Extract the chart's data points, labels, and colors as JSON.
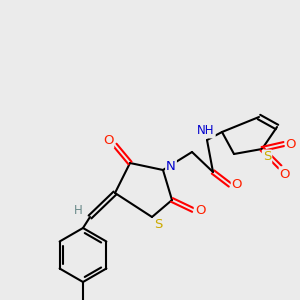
{
  "bg_color": "#ebebeb",
  "atom_colors": {
    "C": "#000000",
    "N": "#0000cd",
    "O": "#ff2000",
    "S": "#ccaa00",
    "H": "#6a8a8a"
  },
  "bond_color": "#000000",
  "figsize": [
    3.0,
    3.0
  ],
  "dpi": 100
}
